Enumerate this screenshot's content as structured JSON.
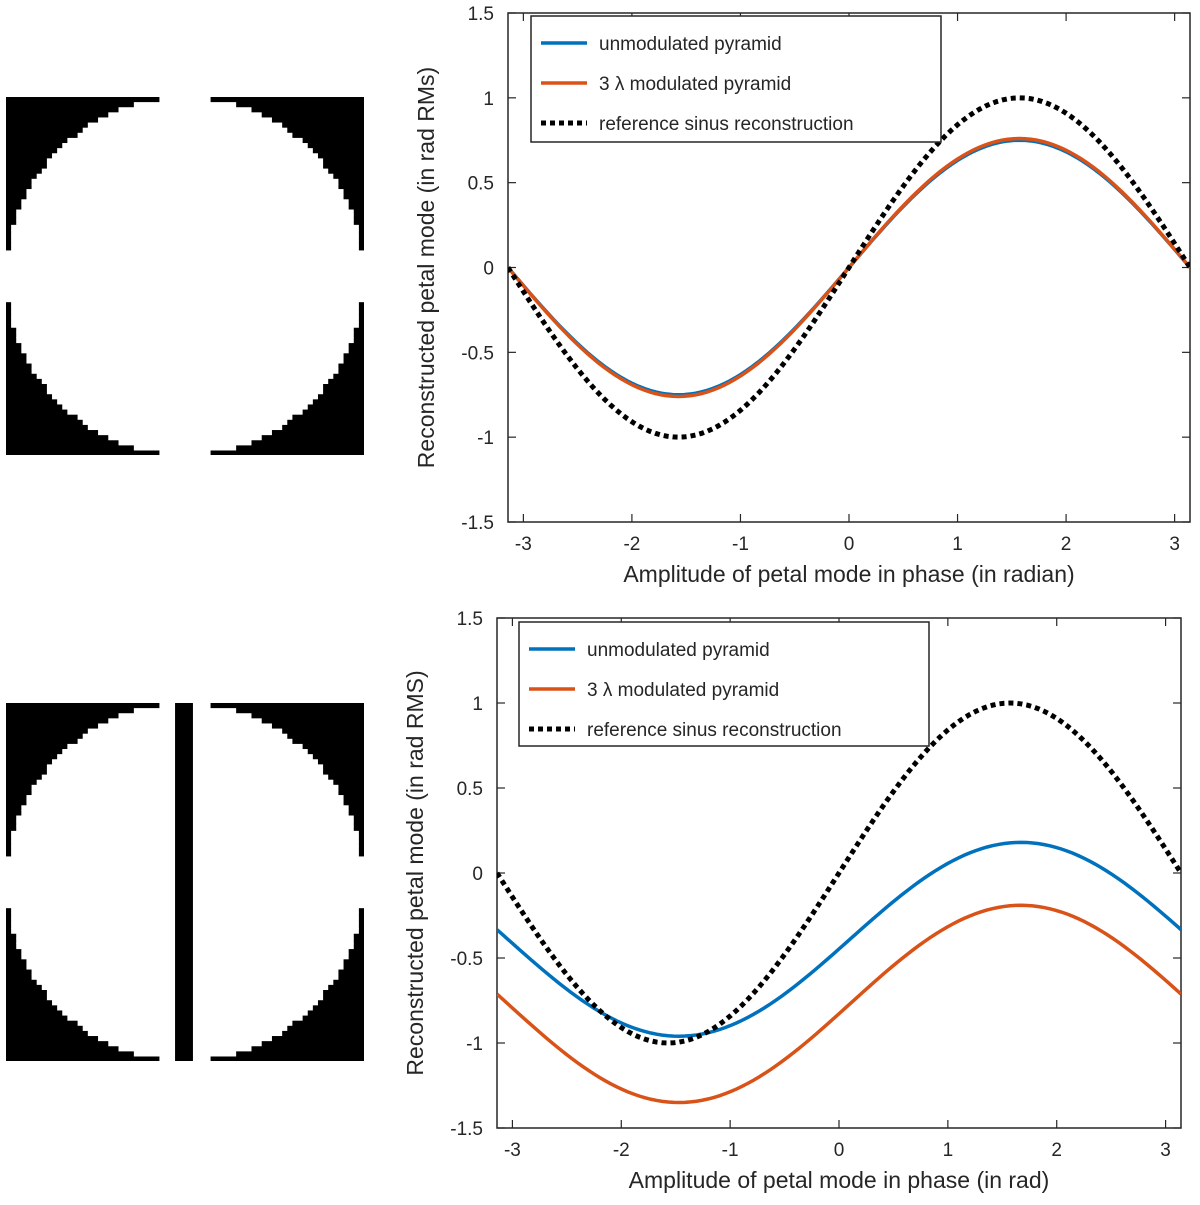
{
  "colors": {
    "unmodulated": "#0072BD",
    "modulated": "#D95319",
    "reference": "#000000",
    "axis": "#262626",
    "mask_fill": "#000000"
  },
  "masks": [
    {
      "name": "pupil-mask-split",
      "description_icon": "pupil-with-central-gap-icon"
    },
    {
      "name": "pupil-mask-spider",
      "description_icon": "pupil-with-spider-arm-icon"
    }
  ],
  "chart_data": [
    {
      "type": "line",
      "xlabel": "Amplitude of petal mode in phase (in radian)",
      "ylabel": "Reconstructed petal mode (in rad RMs)",
      "xlim": [
        -3.1416,
        3.1416
      ],
      "ylim": [
        -1.5,
        1.5
      ],
      "xticks": [
        -3,
        -2,
        -1,
        0,
        1,
        2,
        3
      ],
      "yticks": [
        -1.5,
        -1,
        -0.5,
        0,
        0.5,
        1,
        1.5
      ],
      "xtick_labels": [
        "-3",
        "-2",
        "-1",
        "0",
        "1",
        "2",
        "3"
      ],
      "ytick_labels": [
        "-1.5",
        "-1",
        "-0.5",
        "0",
        "0.5",
        "1",
        "1.5"
      ],
      "legend_position": "top-left",
      "grid": false,
      "series": [
        {
          "name": "unmodulated pyramid",
          "style": "solid",
          "amplitude": 0.75,
          "offset": 0.0
        },
        {
          "name": "3 λ modulated pyramid",
          "style": "solid",
          "amplitude": 0.76,
          "offset": 0.0
        },
        {
          "name": "reference sinus reconstruction",
          "style": "dotted",
          "amplitude": 1.0,
          "offset": 0.0
        }
      ]
    },
    {
      "type": "line",
      "xlabel": "Amplitude of petal mode in phase (in rad)",
      "ylabel": "Reconstructed petal mode (in rad RMS)",
      "xlim": [
        -3.1416,
        3.1416
      ],
      "ylim": [
        -1.5,
        1.5
      ],
      "xticks": [
        -3,
        -2,
        -1,
        0,
        1,
        2,
        3
      ],
      "yticks": [
        -1.5,
        -1,
        -0.5,
        0,
        0.5,
        1,
        1.5
      ],
      "xtick_labels": [
        "-3",
        "-2",
        "-1",
        "0",
        "1",
        "2",
        "3"
      ],
      "ytick_labels": [
        "-1.5",
        "-1",
        "-0.5",
        "0",
        "0.5",
        "1",
        "1.5"
      ],
      "legend_position": "top-left",
      "grid": false,
      "series": [
        {
          "name": "unmodulated pyramid",
          "style": "solid",
          "amplitude": 0.57,
          "offset": -0.39,
          "phase_shift": 0.1
        },
        {
          "name": "3 λ modulated pyramid",
          "style": "solid",
          "amplitude": 0.58,
          "offset": -0.77,
          "phase_shift": 0.1
        },
        {
          "name": "reference sinus reconstruction",
          "style": "dotted",
          "amplitude": 1.0,
          "offset": 0.0
        }
      ]
    }
  ]
}
